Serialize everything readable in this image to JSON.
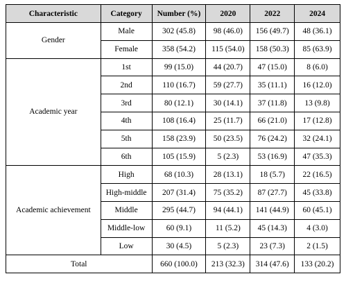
{
  "table": {
    "header": [
      "Characteristic",
      "Category",
      "Number (%)",
      "2020",
      "2022",
      "2024"
    ],
    "groups": [
      {
        "label": "Gender",
        "rows": [
          [
            "Male",
            "302 (45.8)",
            "98 (46.0)",
            "156 (49.7)",
            "48 (36.1)"
          ],
          [
            "Female",
            "358 (54.2)",
            "115 (54.0)",
            "158 (50.3)",
            "85 (63.9)"
          ]
        ]
      },
      {
        "label": "Academic year",
        "rows": [
          [
            "1st",
            "99 (15.0)",
            "44 (20.7)",
            "47 (15.0)",
            "8 (6.0)"
          ],
          [
            "2nd",
            "110 (16.7)",
            "59 (27.7)",
            "35 (11.1)",
            "16 (12.0)"
          ],
          [
            "3rd",
            "80 (12.1)",
            "30 (14.1)",
            "37 (11.8)",
            "13 (9.8)"
          ],
          [
            "4th",
            "108 (16.4)",
            "25 (11.7)",
            "66 (21.0)",
            "17 (12.8)"
          ],
          [
            "5th",
            "158 (23.9)",
            "50 (23.5)",
            "76 (24.2)",
            "32 (24.1)"
          ],
          [
            "6th",
            "105 (15.9)",
            "5 (2.3)",
            "53 (16.9)",
            "47 (35.3)"
          ]
        ]
      },
      {
        "label": "Academic achievement",
        "rows": [
          [
            "High",
            "68 (10.3)",
            "28 (13.1)",
            "18 (5.7)",
            "22 (16.5)"
          ],
          [
            "High-middle",
            "207 (31.4)",
            "75 (35.2)",
            "87 (27.7)",
            "45 (33.8)"
          ],
          [
            "Middle",
            "295 (44.7)",
            "94 (44.1)",
            "141 (44.9)",
            "60 (45.1)"
          ],
          [
            "Middle-low",
            "60 (9.1)",
            "11 (5.2)",
            "45 (14.3)",
            "4 (3.0)"
          ],
          [
            "Low",
            "30 (4.5)",
            "5 (2.3)",
            "23 (7.3)",
            "2 (1.5)"
          ]
        ]
      }
    ],
    "total": {
      "label": "Total",
      "values": [
        "660 (100.0)",
        "213 (32.3)",
        "314 (47.6)",
        "133 (20.2)"
      ]
    }
  }
}
